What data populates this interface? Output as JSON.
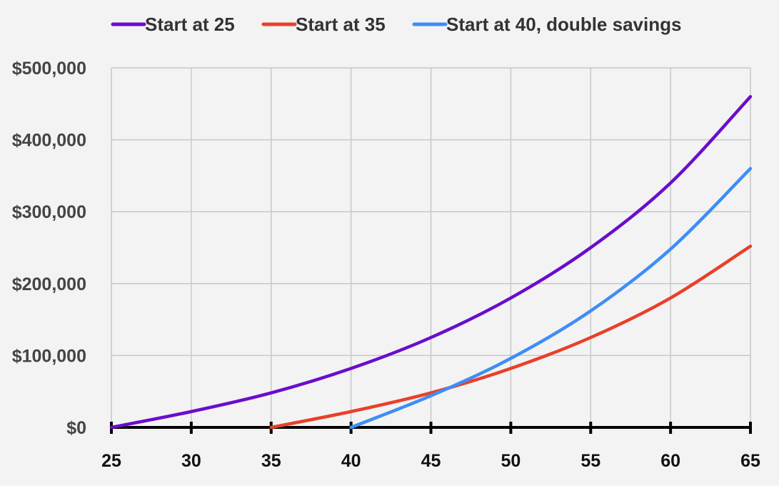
{
  "chart_data": {
    "type": "line",
    "title": "",
    "xlabel": "",
    "ylabel": "",
    "xlim": [
      25,
      65
    ],
    "ylim": [
      0,
      500000
    ],
    "x_ticks": [
      25,
      30,
      35,
      40,
      45,
      50,
      55,
      60,
      65
    ],
    "x_tick_labels": [
      "25",
      "30",
      "35",
      "40",
      "45",
      "50",
      "55",
      "60",
      "65"
    ],
    "y_ticks": [
      0,
      100000,
      200000,
      300000,
      400000,
      500000
    ],
    "y_tick_labels": [
      "$0",
      "$100,000",
      "$200,000",
      "$300,000",
      "$400,000",
      "$500,000"
    ],
    "grid": true,
    "legend_position": "top",
    "series": [
      {
        "name": "Start at 25",
        "color": "#6a0dcc",
        "x": [
          25,
          30,
          35,
          40,
          45,
          50,
          55,
          60,
          65
        ],
        "y": [
          0,
          22000,
          48000,
          82000,
          125000,
          180000,
          250000,
          340000,
          460000
        ]
      },
      {
        "name": "Start at 35",
        "color": "#e8402a",
        "x": [
          35,
          40,
          45,
          50,
          55,
          60,
          65
        ],
        "y": [
          0,
          22000,
          48000,
          82000,
          125000,
          180000,
          252000
        ]
      },
      {
        "name": "Start at 40, double savings",
        "color": "#3d8ef7",
        "x": [
          40,
          45,
          50,
          55,
          60,
          65
        ],
        "y": [
          0,
          44000,
          96000,
          162000,
          248000,
          360000
        ]
      }
    ]
  }
}
